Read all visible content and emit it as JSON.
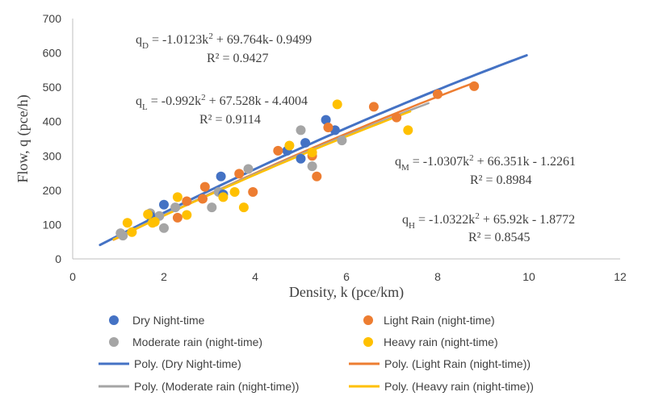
{
  "chart_data": {
    "type": "scatter",
    "xlabel": "Density, k (pce/km)",
    "ylabel": "Flow, q (pce/h)",
    "xlim": [
      0,
      12
    ],
    "ylim": [
      0,
      700
    ],
    "xticks": [
      "0",
      "2",
      "4",
      "6",
      "8",
      "10",
      "12"
    ],
    "yticks": [
      "0",
      "100",
      "200",
      "300",
      "400",
      "500",
      "600",
      "700"
    ],
    "legend_position": "bottom",
    "grid": false,
    "series": [
      {
        "name": "Dry Night-time",
        "color": "#4472C4",
        "points": [
          [
            1.7,
            125
          ],
          [
            2.0,
            158
          ],
          [
            3.25,
            240
          ],
          [
            3.3,
            188
          ],
          [
            4.7,
            315
          ],
          [
            5.0,
            292
          ],
          [
            5.1,
            338
          ],
          [
            5.55,
            405
          ],
          [
            5.75,
            375
          ]
        ]
      },
      {
        "name": "Light Rain (night-time)",
        "color": "#ED7D31",
        "points": [
          [
            2.3,
            120
          ],
          [
            2.5,
            168
          ],
          [
            2.85,
            175
          ],
          [
            2.9,
            210
          ],
          [
            3.65,
            248
          ],
          [
            3.95,
            195
          ],
          [
            4.5,
            315
          ],
          [
            5.25,
            300
          ],
          [
            5.35,
            240
          ],
          [
            5.6,
            383
          ],
          [
            6.6,
            443
          ],
          [
            7.1,
            412
          ],
          [
            8.0,
            480
          ],
          [
            8.8,
            503
          ]
        ]
      },
      {
        "name": "Moderate rain (night-time)",
        "color": "#A5A5A5",
        "points": [
          [
            1.05,
            75
          ],
          [
            1.1,
            68
          ],
          [
            1.7,
            133
          ],
          [
            1.9,
            125
          ],
          [
            2.0,
            90
          ],
          [
            2.25,
            150
          ],
          [
            3.05,
            150
          ],
          [
            3.2,
            195
          ],
          [
            3.85,
            262
          ],
          [
            5.0,
            375
          ],
          [
            5.25,
            270
          ],
          [
            5.9,
            345
          ]
        ]
      },
      {
        "name": "Heavy rain (night-time)",
        "color": "#FFC000",
        "points": [
          [
            1.2,
            105
          ],
          [
            1.3,
            78
          ],
          [
            1.65,
            130
          ],
          [
            1.75,
            105
          ],
          [
            1.8,
            108
          ],
          [
            2.3,
            180
          ],
          [
            2.5,
            128
          ],
          [
            3.3,
            180
          ],
          [
            3.55,
            195
          ],
          [
            3.75,
            150
          ],
          [
            4.75,
            330
          ],
          [
            5.25,
            310
          ],
          [
            5.8,
            450
          ],
          [
            7.35,
            375
          ]
        ]
      }
    ],
    "trendlines": [
      {
        "name": "Poly. (Dry Night-time)",
        "color": "#4472C4",
        "coefficients": [
          -1.0123,
          69.764,
          -0.9499
        ],
        "x_range": [
          0.6,
          9.95
        ],
        "stroke_width": 3
      },
      {
        "name": "Poly. (Light Rain (night-time))",
        "color": "#ED7D31",
        "coefficients": [
          -0.992,
          67.528,
          -4.4004
        ],
        "x_range": [
          0.9,
          8.8
        ],
        "stroke_width": 2.5
      },
      {
        "name": "Poly. (Moderate rain (night-time))",
        "color": "#A5A5A5",
        "coefficients": [
          -1.0307,
          66.351,
          -1.2261
        ],
        "x_range": [
          0.9,
          7.8
        ],
        "stroke_width": 2.5
      },
      {
        "name": "Poly. (Heavy rain (night-time))",
        "color": "#FFC000",
        "coefficients": [
          -1.0322,
          65.92,
          -1.8772
        ],
        "x_range": [
          0.9,
          7.4
        ],
        "stroke_width": 2.5
      }
    ],
    "annotations": [
      {
        "id": "dry",
        "prefix": "q",
        "sub": "D",
        "text": " = -1.0123k",
        "sup": "2",
        "rest": " + 69.764k- 0.9499",
        "r2": "R² = 0.9427"
      },
      {
        "id": "light",
        "prefix": "q",
        "sub": "L",
        "text": " = -0.992k",
        "sup": "2",
        "rest": " + 67.528k - 4.4004",
        "r2": "R² = 0.9114"
      },
      {
        "id": "moderate",
        "prefix": "q",
        "sub": "M",
        "text": " = -1.0307k",
        "sup": "2",
        "rest": " + 66.351k - 1.2261",
        "r2": "R² = 0.8984"
      },
      {
        "id": "heavy",
        "prefix": "q",
        "sub": "H",
        "text": " = -1.0322k",
        "sup": "2",
        "rest": " + 65.92k - 1.8772",
        "r2": "R² = 0.8545"
      }
    ]
  }
}
